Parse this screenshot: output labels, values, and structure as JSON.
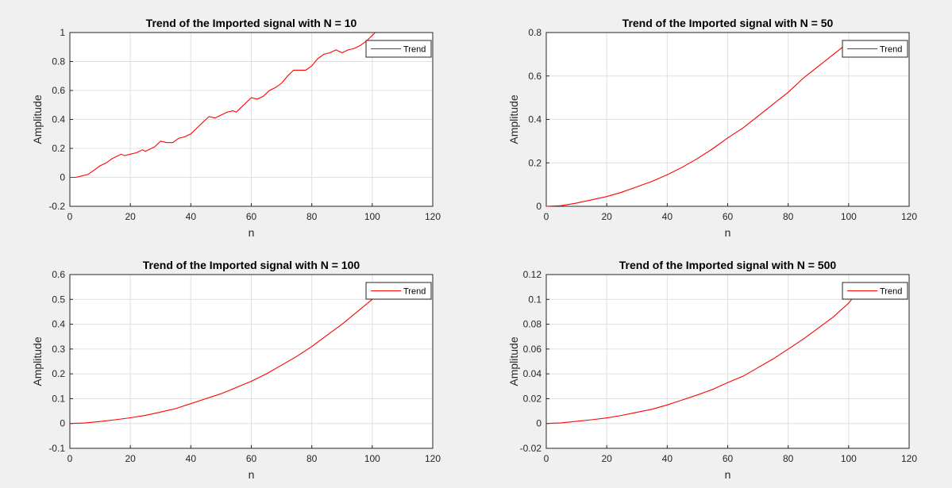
{
  "colors": {
    "figure_background": "#f0f0f0",
    "axes_background": "#ffffff",
    "grid": "#e0e0e0",
    "series": "#ff0000"
  },
  "chart_data": [
    {
      "type": "line",
      "title": "Trend of the Imported signal with N = 10",
      "xlabel": "n",
      "ylabel": "Amplitude",
      "xlim": [
        0,
        120
      ],
      "ylim": [
        -0.2,
        1
      ],
      "xticks": [
        0,
        20,
        40,
        60,
        80,
        100,
        120
      ],
      "yticks": [
        -0.2,
        0,
        0.2,
        0.4,
        0.6,
        0.8,
        1
      ],
      "ytick_labels": [
        "-0.2",
        "0",
        "0.2",
        "0.4",
        "0.6",
        "0.8",
        "1"
      ],
      "grid": true,
      "legend": {
        "entries": [
          "Trend"
        ],
        "location": "top-right"
      },
      "series": [
        {
          "name": "Trend",
          "x": [
            0,
            2,
            4,
            6,
            8,
            10,
            12,
            14,
            16,
            17,
            18,
            20,
            22,
            24,
            25,
            26,
            28,
            30,
            32,
            34,
            36,
            38,
            40,
            42,
            44,
            46,
            48,
            50,
            52,
            54,
            55,
            56,
            58,
            60,
            62,
            64,
            66,
            68,
            70,
            72,
            74,
            76,
            78,
            80,
            82,
            84,
            86,
            88,
            90,
            92,
            94,
            96,
            98,
            100,
            101
          ],
          "y": [
            0,
            0.0,
            0.01,
            0.02,
            0.05,
            0.08,
            0.1,
            0.13,
            0.15,
            0.16,
            0.15,
            0.16,
            0.17,
            0.19,
            0.18,
            0.19,
            0.21,
            0.25,
            0.24,
            0.24,
            0.27,
            0.28,
            0.3,
            0.34,
            0.38,
            0.42,
            0.41,
            0.43,
            0.45,
            0.46,
            0.45,
            0.47,
            0.51,
            0.55,
            0.54,
            0.56,
            0.6,
            0.62,
            0.65,
            0.7,
            0.74,
            0.74,
            0.74,
            0.77,
            0.82,
            0.85,
            0.86,
            0.88,
            0.86,
            0.88,
            0.89,
            0.91,
            0.94,
            0.98,
            1.0
          ]
        }
      ]
    },
    {
      "type": "line",
      "title": "Trend of the Imported signal with N = 50",
      "xlabel": "n",
      "ylabel": "Amplitude",
      "xlim": [
        0,
        120
      ],
      "ylim": [
        0,
        0.8
      ],
      "xticks": [
        0,
        20,
        40,
        60,
        80,
        100,
        120
      ],
      "yticks": [
        0,
        0.2,
        0.4,
        0.6,
        0.8
      ],
      "ytick_labels": [
        "0",
        "0.2",
        "0.4",
        "0.6",
        "0.8"
      ],
      "grid": true,
      "legend": {
        "entries": [
          "Trend"
        ],
        "location": "top-right"
      },
      "series": [
        {
          "name": "Trend",
          "x": [
            0,
            5,
            10,
            15,
            20,
            25,
            30,
            35,
            40,
            45,
            50,
            55,
            60,
            65,
            70,
            75,
            80,
            85,
            90,
            95,
            100,
            101
          ],
          "y": [
            0,
            0.003,
            0.015,
            0.03,
            0.045,
            0.065,
            0.09,
            0.115,
            0.145,
            0.18,
            0.22,
            0.265,
            0.315,
            0.36,
            0.415,
            0.47,
            0.525,
            0.59,
            0.645,
            0.7,
            0.755,
            0.765
          ]
        }
      ]
    },
    {
      "type": "line",
      "title": "Trend of the Imported signal with N = 100",
      "xlabel": "n",
      "ylabel": "Amplitude",
      "xlim": [
        0,
        120
      ],
      "ylim": [
        -0.1,
        0.6
      ],
      "xticks": [
        0,
        20,
        40,
        60,
        80,
        100,
        120
      ],
      "yticks": [
        -0.1,
        0,
        0.1,
        0.2,
        0.3,
        0.4,
        0.5,
        0.6
      ],
      "ytick_labels": [
        "-0.1",
        "0",
        "0.1",
        "0.2",
        "0.3",
        "0.4",
        "0.5",
        "0.6"
      ],
      "grid": true,
      "legend": {
        "entries": [
          "Trend"
        ],
        "location": "top-right"
      },
      "series": [
        {
          "name": "Trend",
          "x": [
            0,
            5,
            10,
            15,
            20,
            25,
            30,
            35,
            40,
            45,
            50,
            55,
            60,
            65,
            70,
            75,
            80,
            85,
            90,
            95,
            100,
            101
          ],
          "y": [
            0,
            0.002,
            0.008,
            0.015,
            0.023,
            0.033,
            0.046,
            0.06,
            0.08,
            0.1,
            0.12,
            0.145,
            0.17,
            0.2,
            0.235,
            0.27,
            0.31,
            0.355,
            0.4,
            0.45,
            0.5,
            0.51
          ]
        }
      ]
    },
    {
      "type": "line",
      "title": "Trend of the Imported signal with N = 500",
      "xlabel": "n",
      "ylabel": "Amplitude",
      "xlim": [
        0,
        120
      ],
      "ylim": [
        -0.02,
        0.12
      ],
      "xticks": [
        0,
        20,
        40,
        60,
        80,
        100,
        120
      ],
      "yticks": [
        -0.02,
        0,
        0.02,
        0.04,
        0.06,
        0.08,
        0.1,
        0.12
      ],
      "ytick_labels": [
        "-0.02",
        "0",
        "0.02",
        "0.04",
        "0.06",
        "0.08",
        "0.1",
        "0.12"
      ],
      "grid": true,
      "legend": {
        "entries": [
          "Trend"
        ],
        "location": "top-right"
      },
      "series": [
        {
          "name": "Trend",
          "x": [
            0,
            5,
            10,
            15,
            20,
            25,
            30,
            35,
            40,
            45,
            50,
            55,
            60,
            65,
            70,
            75,
            80,
            85,
            90,
            95,
            100,
            101
          ],
          "y": [
            0,
            0.0005,
            0.0018,
            0.003,
            0.0045,
            0.0065,
            0.009,
            0.0115,
            0.015,
            0.019,
            0.023,
            0.0275,
            0.033,
            0.038,
            0.045,
            0.052,
            0.06,
            0.068,
            0.077,
            0.086,
            0.097,
            0.1
          ]
        }
      ]
    }
  ]
}
